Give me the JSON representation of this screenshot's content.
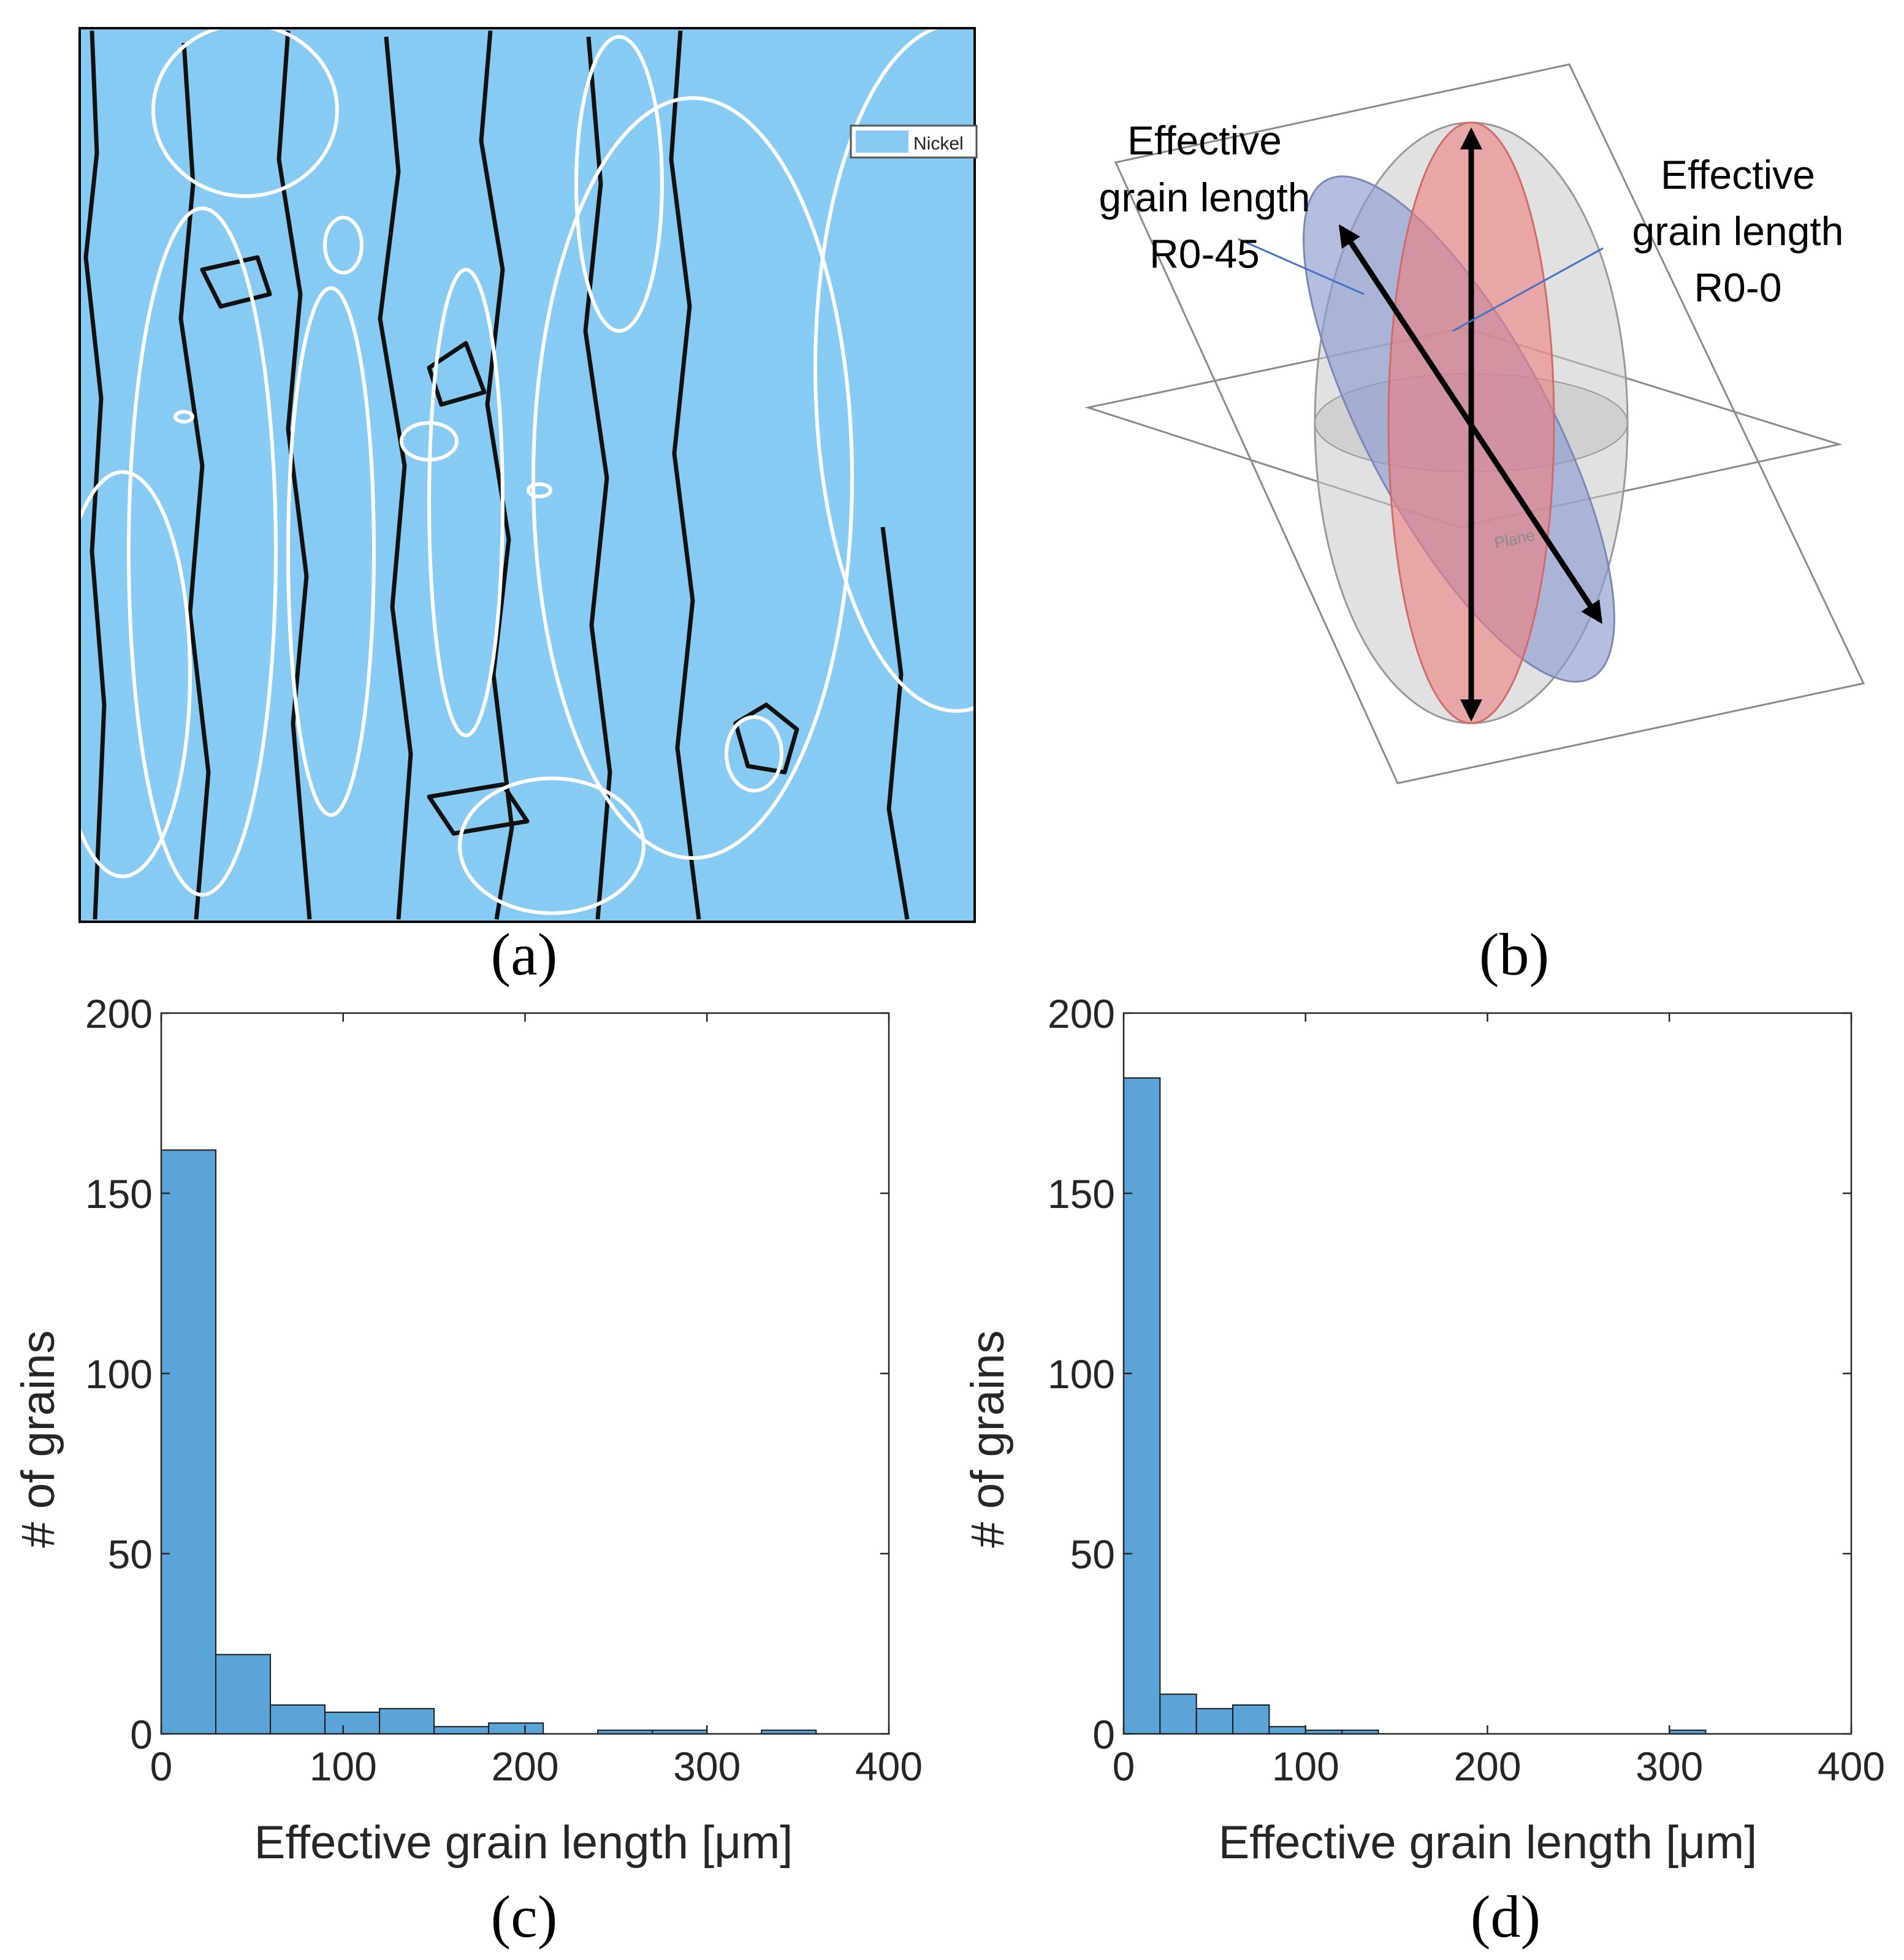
{
  "panels": {
    "a": {
      "caption": "(a)",
      "legend_label": "Nickel",
      "map_color": "#87CBF5"
    },
    "b": {
      "caption": "(b)",
      "label_left": [
        "Effective",
        "grain  length",
        "R0-45"
      ],
      "label_right": [
        "Effective",
        "grain  length",
        "R0-0"
      ],
      "plane_label": "Plane",
      "colors": {
        "red": "#EF7F7F",
        "blue": "#8C9BD1",
        "gray": "#C9C9C9"
      }
    },
    "c": {
      "caption": "(c)"
    },
    "d": {
      "caption": "(d)"
    }
  },
  "chart_data": [
    {
      "type": "bar",
      "panel": "c",
      "bin_edges": [
        0,
        30,
        60,
        90,
        120,
        150,
        180,
        210,
        240,
        270,
        300,
        330,
        360
      ],
      "values": [
        162,
        22,
        8,
        6,
        7,
        2,
        3,
        0,
        1,
        1,
        0,
        1
      ],
      "xlabel": "Effective grain length [μm]",
      "ylabel": "# of grains",
      "xlim": [
        0,
        400
      ],
      "ylim": [
        0,
        200
      ],
      "xticks": [
        "0",
        "100",
        "200",
        "300",
        "400"
      ],
      "yticks": [
        "0",
        "50",
        "100",
        "150",
        "200"
      ],
      "bar_color": "#5BA4D8",
      "grid": false
    },
    {
      "type": "bar",
      "panel": "d",
      "bin_edges": [
        0,
        20,
        40,
        60,
        80,
        100,
        120,
        140,
        160,
        180,
        200,
        220,
        240,
        260,
        280,
        300,
        320
      ],
      "values": [
        182,
        11,
        7,
        8,
        2,
        1,
        1,
        0,
        0,
        0,
        0,
        0,
        0,
        0,
        0,
        1
      ],
      "xlabel": "Effective grain length [μm]",
      "ylabel": "# of grains",
      "xlim": [
        0,
        400
      ],
      "ylim": [
        0,
        200
      ],
      "xticks": [
        "0",
        "100",
        "200",
        "300",
        "400"
      ],
      "yticks": [
        "0",
        "50",
        "100",
        "150",
        "200"
      ],
      "bar_color": "#5BA4D8",
      "grid": false
    }
  ]
}
